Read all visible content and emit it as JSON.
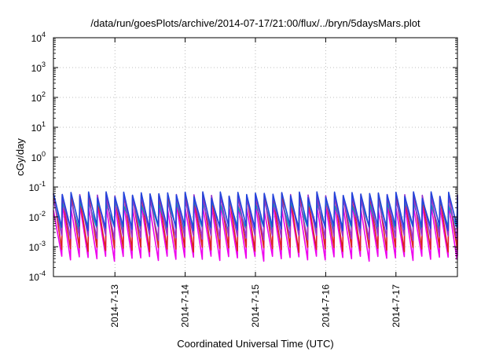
{
  "chart_data": {
    "type": "line",
    "title": "/data/run/goesPlots/archive/2014-07-17/21:00/flux/../bryn/5daysMars.plot",
    "xlabel": "Coordinated Universal Time (UTC)",
    "ylabel": "cGy/day",
    "yscale": "log",
    "ylim": [
      0.0001,
      10000
    ],
    "xlim": [
      "2014-07-12 03:00",
      "2014-07-17 21:00"
    ],
    "x_ticks": [
      "2014-7-13",
      "2014-7-14",
      "2014-7-15",
      "2014-7-16",
      "2014-7-17"
    ],
    "y_ticks": [
      {
        "base": "10",
        "exp": "-4"
      },
      {
        "base": "10",
        "exp": "-3"
      },
      {
        "base": "10",
        "exp": "-2"
      },
      {
        "base": "10",
        "exp": "-1"
      },
      {
        "base": "10",
        "exp": "0"
      },
      {
        "base": "10",
        "exp": "1"
      },
      {
        "base": "10",
        "exp": "2"
      },
      {
        "base": "10",
        "exp": "3"
      },
      {
        "base": "10",
        "exp": "4"
      }
    ],
    "grid": true,
    "cycles": 46,
    "series": [
      {
        "color": "#2244dd",
        "peak": 0.055,
        "trough": 0.0042
      },
      {
        "color": "#9933cc",
        "peak": 0.045,
        "trough": 0.002
      },
      {
        "color": "#00aaaa",
        "peak": 0.03,
        "trough": 0.004
      },
      {
        "color": "#dd2222",
        "peak": 0.05,
        "trough": 0.0008
      },
      {
        "color": "#ee00ee",
        "peak": 0.022,
        "trough": 0.0004
      }
    ]
  }
}
